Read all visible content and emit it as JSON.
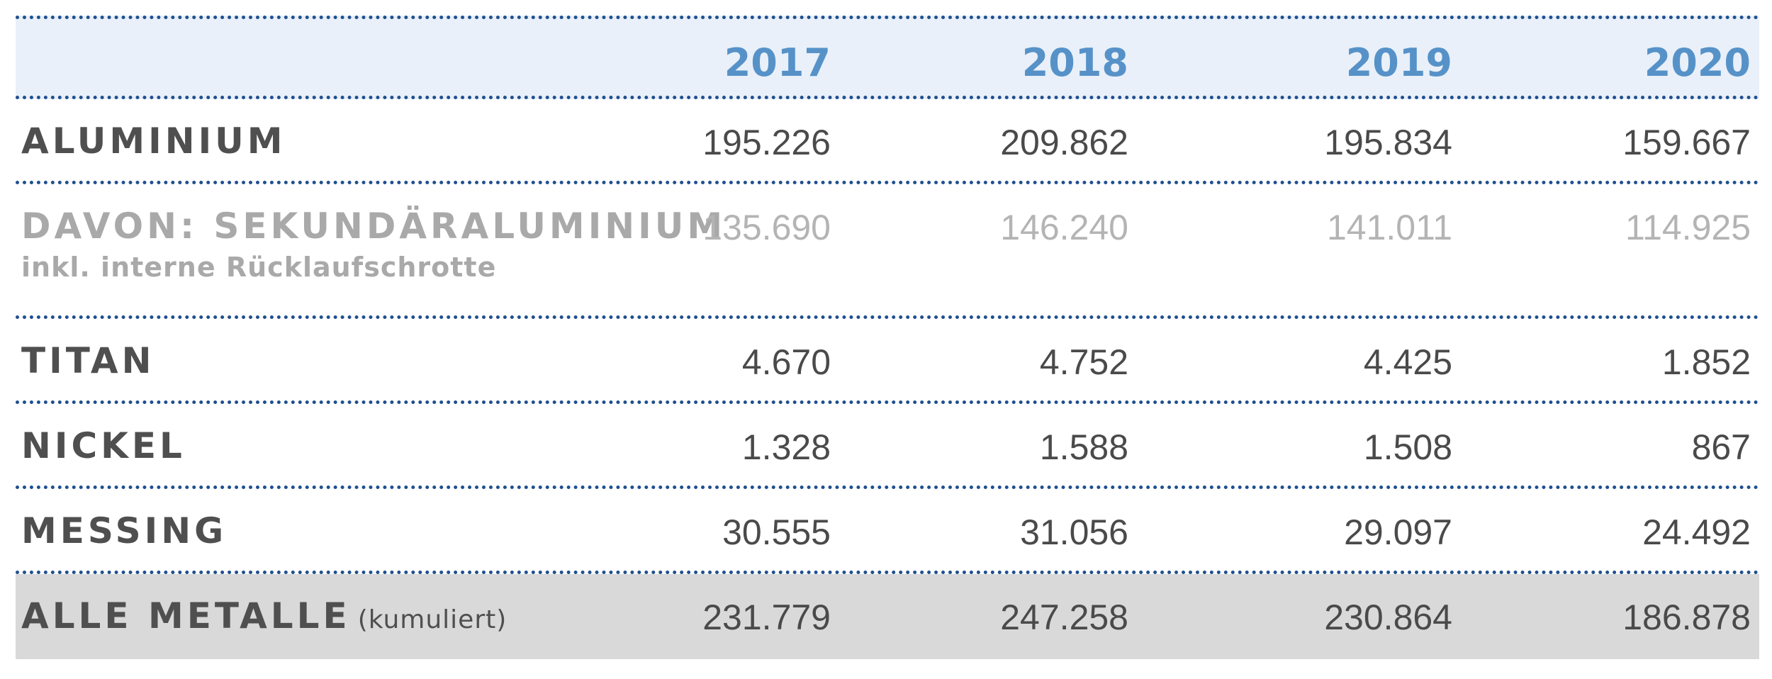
{
  "chart_data": {
    "type": "table",
    "columns": [
      "2017",
      "2018",
      "2019",
      "2020"
    ],
    "rows": [
      {
        "label": "ALUMINIUM",
        "values": [
          "195.226",
          "209.862",
          "195.834",
          "159.667"
        ]
      },
      {
        "label": "DAVON: SEKUNDÄRALUMINIUM",
        "sublabel": "inkl. interne Rücklaufschrotte",
        "values": [
          "135.690",
          "146.240",
          "141.011",
          "114.925"
        ]
      },
      {
        "label": "TITAN",
        "values": [
          "4.670",
          "4.752",
          "4.425",
          "1.852"
        ]
      },
      {
        "label": "NICKEL",
        "values": [
          "1.328",
          "1.588",
          "1.508",
          "867"
        ]
      },
      {
        "label": "MESSING",
        "values": [
          "30.555",
          "31.056",
          "29.097",
          "24.492"
        ]
      },
      {
        "label": "ALLE METALLE",
        "suffix": "(kumuliert)",
        "values": [
          "231.779",
          "247.258",
          "230.864",
          "186.878"
        ]
      }
    ]
  },
  "colors": {
    "header_background": "#e9f0f9",
    "year_text": "#5692c8",
    "divider": "#1f4f8f",
    "total_background": "#d9d9d9",
    "main_text": "#4a4a4a",
    "muted_text": "#b4b4b4"
  }
}
